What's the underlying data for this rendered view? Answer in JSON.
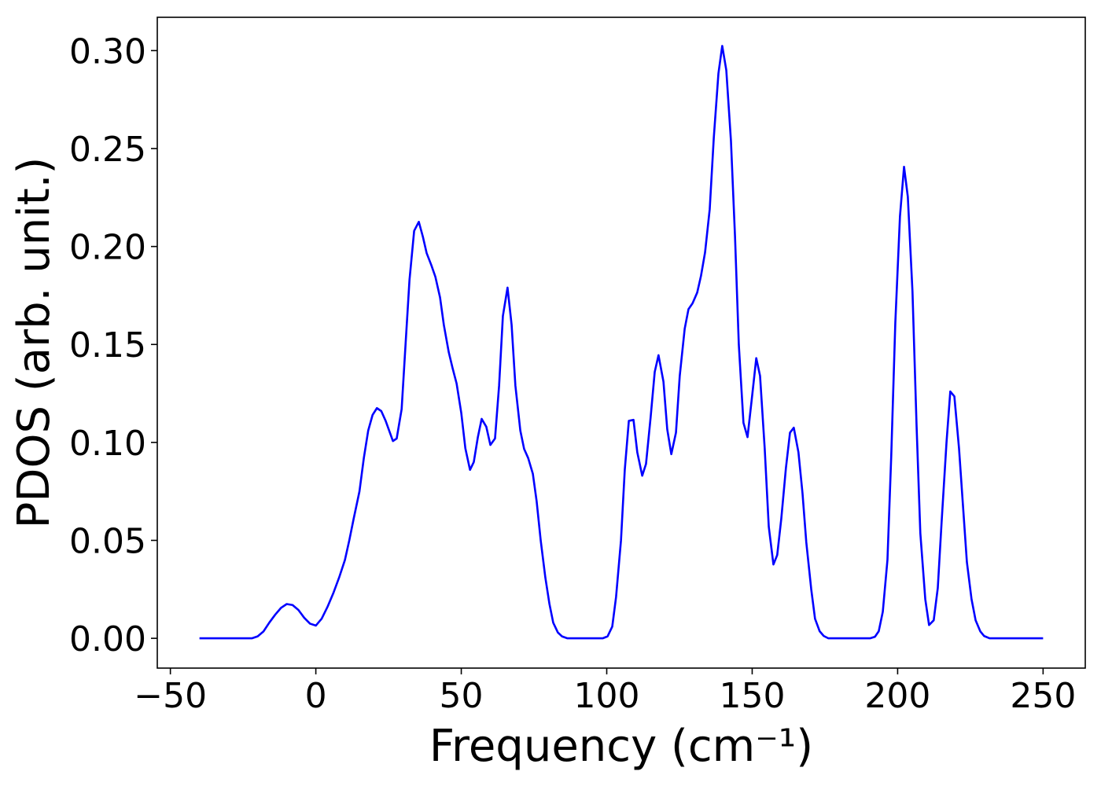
{
  "chart_data": {
    "type": "line",
    "x_label": "Frequency (cm⁻¹)",
    "y_label": "PDOS (arb. unit.)",
    "x": [
      -40,
      -22,
      -20,
      -18,
      -16,
      -14,
      -12,
      -10,
      -8,
      -6,
      -4,
      -2,
      0,
      2,
      4,
      6,
      8,
      10,
      11.5,
      13,
      15,
      16.5,
      18,
      19.5,
      21,
      22.5,
      24,
      26.5,
      27.8,
      29.5,
      30.8,
      32.2,
      33.8,
      35.4,
      36.8,
      38.1,
      39.7,
      41.1,
      42.7,
      44,
      45.7,
      47,
      48.4,
      50,
      51.4,
      53,
      54.3,
      55.7,
      57,
      58.6,
      60,
      61.6,
      63,
      64.3,
      65.9,
      67.3,
      68.6,
      70.3,
      71.6,
      73,
      74.6,
      75.9,
      77.3,
      78.9,
      80.3,
      81.6,
      83.2,
      84.6,
      86.5,
      98.6,
      100.3,
      101.9,
      103.2,
      104.9,
      106.2,
      107.6,
      109.2,
      110.5,
      112.2,
      113.5,
      115.1,
      116.5,
      117.8,
      119.5,
      120.8,
      122.2,
      123.8,
      125.1,
      126.8,
      128.1,
      129.5,
      131.1,
      132.4,
      133.8,
      135.4,
      136.8,
      138.4,
      139.7,
      141.1,
      142.7,
      144.1,
      145.4,
      147,
      148.4,
      150,
      151.4,
      152.7,
      154.3,
      155.7,
      157.3,
      158.6,
      160,
      161.6,
      163,
      164.3,
      165.9,
      167.3,
      168.6,
      170.3,
      171.6,
      173.2,
      174.6,
      176.2,
      190.5,
      192.2,
      193.5,
      194.9,
      196.5,
      197.8,
      199.2,
      200.8,
      202.2,
      203.5,
      205.1,
      206.5,
      207.8,
      209.5,
      210.8,
      212.4,
      213.8,
      215.1,
      216.8,
      218.1,
      219.5,
      221.1,
      222.4,
      223.8,
      225.4,
      226.8,
      228.4,
      229.7,
      231.6,
      250
    ],
    "series": [
      {
        "name": "PDOS",
        "color": "#0000ff",
        "values": [
          0,
          0,
          0.001,
          0.0035,
          0.008,
          0.012,
          0.0155,
          0.0175,
          0.017,
          0.0145,
          0.0105,
          0.0075,
          0.0065,
          0.01,
          0.016,
          0.023,
          0.031,
          0.04,
          0.05,
          0.061,
          0.075,
          0.092,
          0.106,
          0.114,
          0.1175,
          0.116,
          0.111,
          0.1007,
          0.102,
          0.117,
          0.149,
          0.183,
          0.208,
          0.2126,
          0.205,
          0.1966,
          0.1905,
          0.1845,
          0.174,
          0.16,
          0.146,
          0.138,
          0.13,
          0.115,
          0.097,
          0.086,
          0.09,
          0.1027,
          0.112,
          0.108,
          0.0987,
          0.102,
          0.129,
          0.1645,
          0.179,
          0.16,
          0.129,
          0.106,
          0.0967,
          0.092,
          0.084,
          0.07,
          0.05,
          0.031,
          0.0176,
          0.008,
          0.003,
          0.001,
          0,
          0,
          0.001,
          0.006,
          0.021,
          0.05,
          0.086,
          0.111,
          0.1115,
          0.095,
          0.083,
          0.089,
          0.113,
          0.136,
          0.1445,
          0.131,
          0.1067,
          0.094,
          0.105,
          0.134,
          0.158,
          0.168,
          0.171,
          0.1765,
          0.185,
          0.197,
          0.219,
          0.2555,
          0.2884,
          0.3024,
          0.29,
          0.254,
          0.205,
          0.15,
          0.11,
          0.1027,
          0.124,
          0.143,
          0.134,
          0.097,
          0.057,
          0.0377,
          0.0425,
          0.061,
          0.087,
          0.105,
          0.1075,
          0.095,
          0.074,
          0.049,
          0.025,
          0.01,
          0.0036,
          0.0012,
          0,
          0,
          0.0008,
          0.0036,
          0.0136,
          0.04,
          0.093,
          0.161,
          0.2154,
          0.2407,
          0.2254,
          0.177,
          0.109,
          0.0537,
          0.02,
          0.0068,
          0.0092,
          0.0257,
          0.059,
          0.1,
          0.126,
          0.1235,
          0.097,
          0.069,
          0.039,
          0.02,
          0.0092,
          0.0036,
          0.0012,
          0,
          0
        ]
      }
    ],
    "xlim": [
      -54.5,
      264.5
    ],
    "ylim": [
      -0.0152,
      0.317
    ],
    "xticks": [
      {
        "value": -50,
        "label": "−50"
      },
      0,
      50,
      100,
      150,
      200,
      250
    ],
    "yticks": [
      {
        "value": 0,
        "label": "0.00"
      },
      0.05,
      {
        "value": 0.1,
        "label": "0.10"
      },
      0.15,
      {
        "value": 0.2,
        "label": "0.20"
      },
      0.25,
      {
        "value": 0.3,
        "label": "0.30"
      }
    ],
    "grid": false
  }
}
